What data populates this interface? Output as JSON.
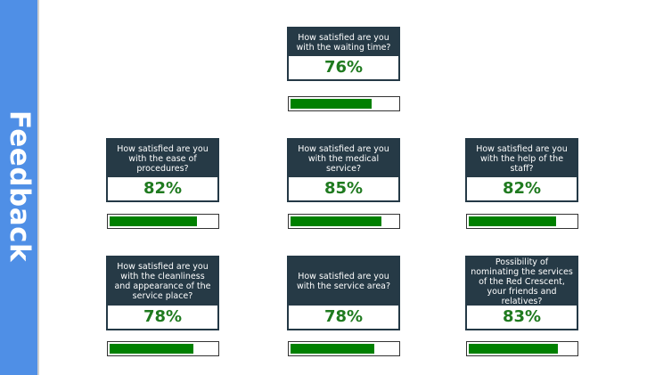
{
  "sidebar": {
    "label": "Feedback"
  },
  "colors": {
    "sidebar": "#4f8fe6",
    "header": "#263a46",
    "percent_text": "#1f7a1f",
    "bar_fill": "#008000"
  },
  "cards": [
    {
      "question": "How satisfied are you with the waiting time?",
      "percent_label": "76%",
      "value": 76
    },
    {
      "question": "How satisfied are you with the ease of procedures?",
      "percent_label": "82%",
      "value": 82
    },
    {
      "question": "How satisfied are you with the medical service?",
      "percent_label": "85%",
      "value": 85
    },
    {
      "question": "How satisfied are you with the help of the staff?",
      "percent_label": "82%",
      "value": 82
    },
    {
      "question": "How satisfied are you with the cleanliness and appearance of the service place?",
      "percent_label": "78%",
      "value": 78
    },
    {
      "question": "How satisfied are you with the service area?",
      "percent_label": "78%",
      "value": 78
    },
    {
      "question": "Possibility of nominating the services of the Red Crescent, your friends and relatives?",
      "percent_label": "83%",
      "value": 83
    }
  ]
}
